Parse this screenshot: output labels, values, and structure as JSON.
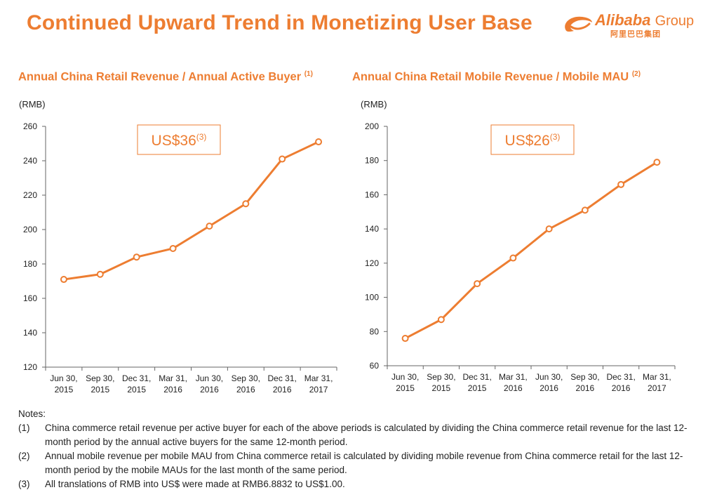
{
  "page": {
    "title": "Continued Upward Trend in Monetizing User Base",
    "logo": {
      "brand": "Alibaba",
      "suffix": "Group",
      "chinese": "阿里巴巴集团"
    }
  },
  "colors": {
    "accent": "#ED7D31",
    "axis": "#666666",
    "text": "#222222"
  },
  "chart_data": [
    {
      "type": "line",
      "title": "Annual China Retail Revenue / Annual Active Buyer",
      "title_note": "(1)",
      "unit_label": "(RMB)",
      "callout": "US$36",
      "callout_note": "(3)",
      "categories": [
        [
          "Jun 30,",
          "2015"
        ],
        [
          "Sep 30,",
          "2015"
        ],
        [
          "Dec 31,",
          "2015"
        ],
        [
          "Mar 31,",
          "2016"
        ],
        [
          "Jun 30,",
          "2016"
        ],
        [
          "Sep 30,",
          "2016"
        ],
        [
          "Dec 31,",
          "2016"
        ],
        [
          "Mar 31,",
          "2017"
        ]
      ],
      "values": [
        171,
        174,
        184,
        189,
        202,
        215,
        241,
        251
      ],
      "ylim": [
        120,
        260
      ],
      "yticks": [
        120,
        140,
        160,
        180,
        200,
        220,
        240,
        260
      ],
      "grid": false,
      "color": "#ED7D31"
    },
    {
      "type": "line",
      "title": "Annual China Retail Mobile Revenue / Mobile MAU",
      "title_note": "(2)",
      "unit_label": "(RMB)",
      "callout": "US$26",
      "callout_note": "(3)",
      "categories": [
        [
          "Jun 30,",
          "2015"
        ],
        [
          "Sep 30,",
          "2015"
        ],
        [
          "Dec 31,",
          "2015"
        ],
        [
          "Mar 31,",
          "2016"
        ],
        [
          "Jun 30,",
          "2016"
        ],
        [
          "Sep 30,",
          "2016"
        ],
        [
          "Dec 31,",
          "2016"
        ],
        [
          "Mar 31,",
          "2017"
        ]
      ],
      "values": [
        76,
        87,
        108,
        123,
        140,
        151,
        166,
        179
      ],
      "ylim": [
        60,
        200
      ],
      "yticks": [
        60,
        80,
        100,
        120,
        140,
        160,
        180,
        200
      ],
      "grid": false,
      "color": "#ED7D31"
    }
  ],
  "notes": {
    "heading": "Notes:",
    "items": [
      {
        "num": "(1)",
        "text": "China commerce retail revenue per active buyer for each of the above periods is calculated by dividing the China commerce retail revenue for the last 12-month period by the annual active buyers for the same 12-month period."
      },
      {
        "num": "(2)",
        "text": "Annual mobile revenue per mobile MAU from China commerce retail is calculated by dividing mobile revenue from China commerce retail for the last 12-month period by the mobile MAUs for the last month of the same period."
      },
      {
        "num": "(3)",
        "text": "All translations of RMB into US$ were made at RMB6.8832 to US$1.00."
      }
    ]
  }
}
